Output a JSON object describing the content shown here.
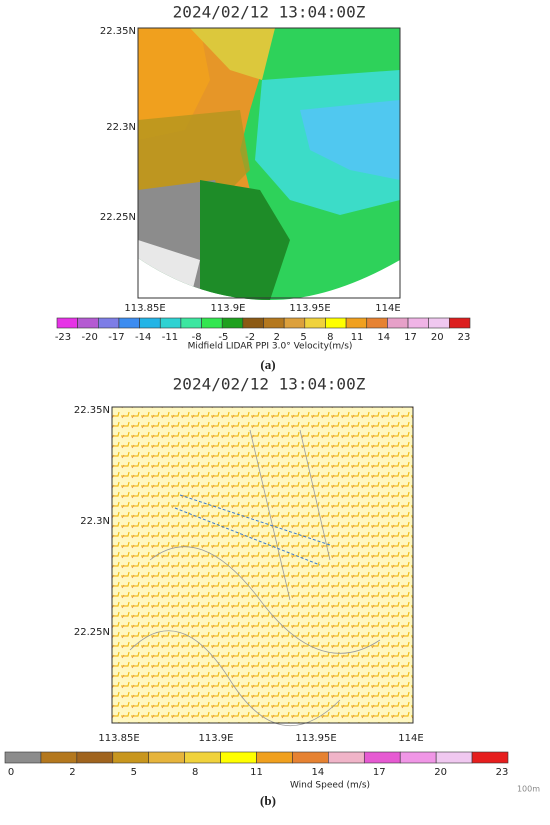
{
  "panels": [
    {
      "title": "2024/02/12 13:04:00Z",
      "yticks": [
        "22.35N",
        "22.3N",
        "22.25N"
      ],
      "xticks": [
        "113.85E",
        "113.9E",
        "113.95E",
        "114E"
      ],
      "colorbar": {
        "labels": [
          "-23",
          "-20",
          "-17",
          "-14",
          "-11",
          "-8",
          "-5",
          "-2",
          "2",
          "5",
          "8",
          "11",
          "14",
          "17",
          "20",
          "23"
        ],
        "colors": [
          "#e632e6",
          "#b45ad2",
          "#7d7de6",
          "#3c8cf0",
          "#23b4e6",
          "#2ed2d2",
          "#3ce6a0",
          "#32e650",
          "#1ea01e",
          "#8c5a14",
          "#b4781e",
          "#dca03c",
          "#f0d23c",
          "#ffff00",
          "#f0a01e",
          "#e68232",
          "#e6a0c8",
          "#f0b4e6",
          "#f0c8f0",
          "#dc1e1e"
        ],
        "title": "Midfield LIDAR PPI 3.0° Velocity(m/s)"
      },
      "caption": "(a)"
    },
    {
      "title": "2024/02/12 13:04:00Z",
      "yticks": [
        "22.35N",
        "22.3N",
        "22.25N"
      ],
      "xticks": [
        "113.85E",
        "113.9E",
        "113.95E",
        "114E"
      ],
      "colorbar": {
        "labels": [
          "0",
          "2",
          "5",
          "8",
          "11",
          "14",
          "17",
          "20",
          "23"
        ],
        "colors": [
          "#8c8c8c",
          "#b4781e",
          "#a0641e",
          "#c8961e",
          "#e6b43c",
          "#f0d23c",
          "#ffff00",
          "#f0a01e",
          "#e68232",
          "#f0b4c8",
          "#e65ad2",
          "#f096e6",
          "#f0c8f0",
          "#e61e1e"
        ],
        "title": "Wind Speed (m/s)"
      },
      "caption": "(b)"
    }
  ],
  "scale_note": "100m"
}
